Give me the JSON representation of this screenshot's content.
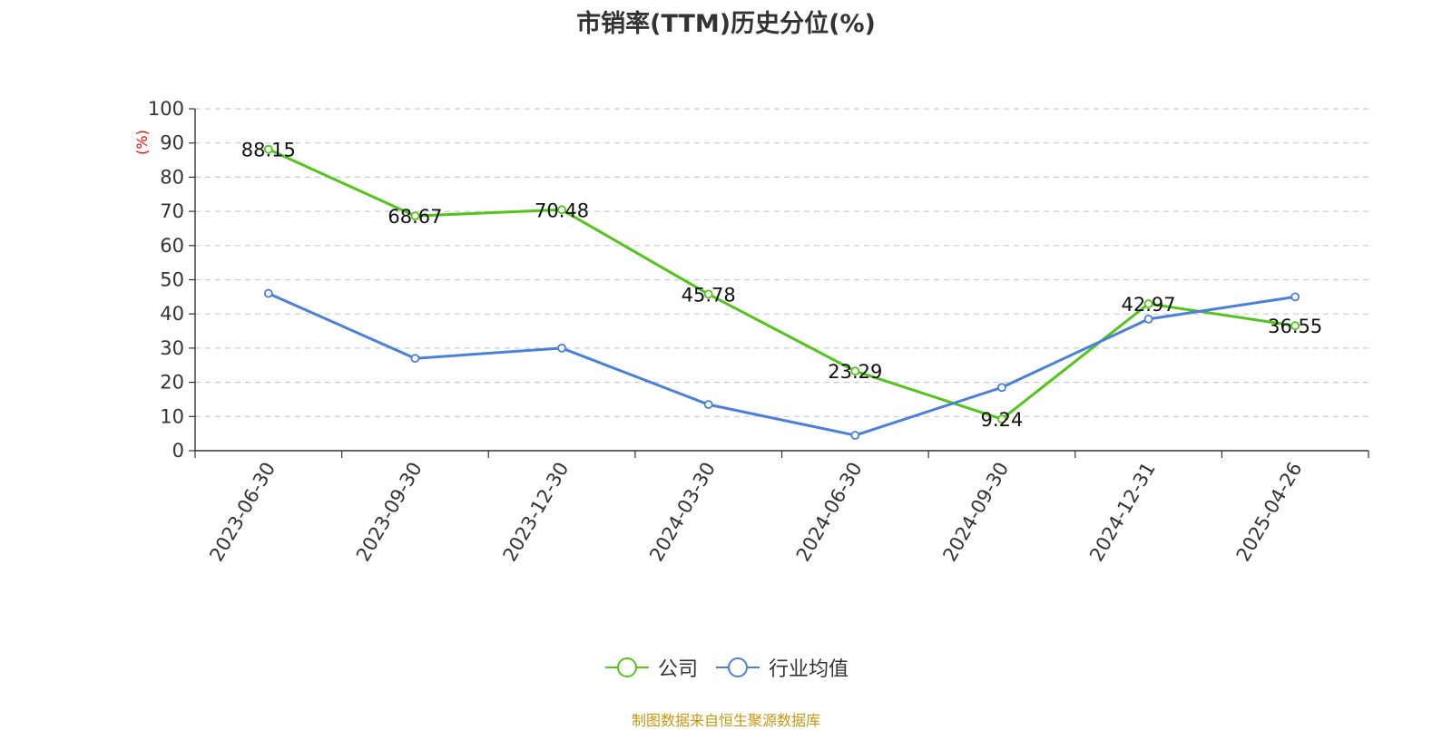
{
  "chart_data": {
    "type": "line",
    "title": "市销率(TTM)历史分位(%)",
    "ylabel": "(%)",
    "ylim": [
      0,
      100
    ],
    "yticks": [
      0,
      10,
      20,
      30,
      40,
      50,
      60,
      70,
      80,
      90,
      100
    ],
    "categories": [
      "2023-06-30",
      "2023-09-30",
      "2023-12-30",
      "2024-03-30",
      "2024-06-30",
      "2024-09-30",
      "2024-12-31",
      "2025-04-26"
    ],
    "series": [
      {
        "name": "公司",
        "color": "#52c41a",
        "values": [
          88.15,
          68.67,
          70.48,
          45.78,
          23.29,
          9.24,
          42.97,
          36.55
        ],
        "labels": [
          "88.15",
          "68.67",
          "70.48",
          "45.78",
          "23.29",
          "9.24",
          "42.97",
          "36.55"
        ]
      },
      {
        "name": "行业均值",
        "color": "#4a7fdc",
        "values": [
          46.0,
          27.0,
          30.0,
          13.5,
          4.5,
          18.5,
          38.5,
          45.0
        ]
      }
    ],
    "grid": true,
    "legend_position": "bottom-center",
    "source": "制图数据来自恒生聚源数据库"
  }
}
